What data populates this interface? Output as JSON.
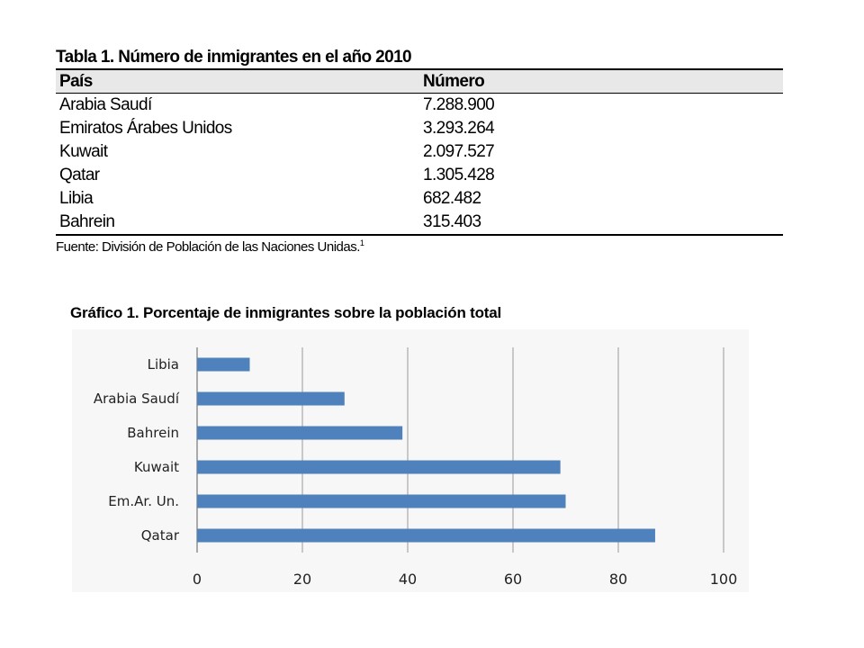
{
  "table": {
    "title": "Tabla 1. Número de inmigrantes en el año 2010",
    "headers": [
      "País",
      "Número"
    ],
    "rows": [
      [
        "Arabia Saudí",
        "7.288.900"
      ],
      [
        "Emiratos Árabes Unidos",
        "3.293.264"
      ],
      [
        "Kuwait",
        "2.097.527"
      ],
      [
        "Qatar",
        "1.305.428"
      ],
      [
        "Libia",
        "682.482"
      ],
      [
        "Bahrein",
        "315.403"
      ]
    ],
    "source": "Fuente: División de Población de las Naciones Unidas.",
    "source_note": "1"
  },
  "chart_data": {
    "type": "bar",
    "orientation": "horizontal",
    "title": "Gráfico 1. Porcentaje de inmigrantes sobre la población total",
    "categories": [
      "Libia",
      "Arabia Saudí",
      "Bahrein",
      "Kuwait",
      "Em.Ar. Un.",
      "Qatar"
    ],
    "values": [
      10,
      28,
      39,
      69,
      70,
      87
    ],
    "xlim": [
      0,
      100
    ],
    "xticks": [
      0,
      20,
      40,
      60,
      80,
      100
    ],
    "xlabel": "",
    "ylabel": "",
    "grid": true,
    "bar_color": "#4f81bd"
  }
}
